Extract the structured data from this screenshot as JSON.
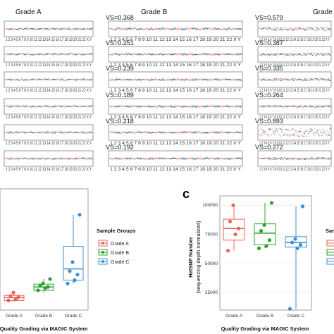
{
  "headers": {
    "grade_a": "Grade A",
    "grade_b": "Grade B",
    "grade_c": "Grade C"
  },
  "vs_b": [
    "VS=0.368",
    "VS=0.251",
    "VS=0.239",
    "VS=0.189",
    "VS=0.218",
    "VS=0.192"
  ],
  "vs_c": [
    "VS=0.579",
    "VS=0.387",
    "VS=0.335",
    "VS=0.264",
    "VS=0.893",
    "VS=0.272"
  ],
  "colors": {
    "red": "#e46a5e",
    "blue": "#1f3a8a",
    "grade_a": "#e8655c",
    "grade_b": "#2ca02c",
    "grade_c": "#3d8fd6"
  },
  "chart_data": [
    {
      "type": "box",
      "panel": "b",
      "categories": [
        "Grade A",
        "Grade B",
        "Grade C"
      ],
      "xlabel": "Quality Grading via MAGIC System",
      "ylabel": "",
      "legend_title": "Sample Groups",
      "legend": [
        "Grade A",
        "Grade B",
        "Grade C"
      ],
      "legend_position": "right",
      "ylim": [
        0,
        1
      ],
      "series": [
        {
          "group": "Grade A",
          "q1": 0.06,
          "median": 0.085,
          "q3": 0.105,
          "whisker_low": 0.05,
          "whisker_high": 0.14,
          "points": [
            0.06,
            0.07,
            0.09,
            0.1,
            0.13
          ]
        },
        {
          "group": "Grade B",
          "q1": 0.15,
          "median": 0.18,
          "q3": 0.205,
          "whisker_low": 0.13,
          "whisker_high": 0.25,
          "points": [
            0.15,
            0.17,
            0.18,
            0.19,
            0.21,
            0.25
          ]
        },
        {
          "group": "Grade C",
          "q1": 0.24,
          "median": 0.34,
          "q3": 0.54,
          "whisker_low": 0.21,
          "whisker_high": 0.82,
          "points": [
            0.21,
            0.24,
            0.29,
            0.32,
            0.4,
            0.82
          ]
        }
      ]
    },
    {
      "type": "box",
      "panel": "c",
      "panel_label": "c",
      "categories": [
        "Grade A",
        "Grade B",
        "Grade C"
      ],
      "xlabel": "Quality Grading via MAGIC System",
      "ylabel": "HetSNP Number",
      "ylabel2": "(sequencing depth normalized)",
      "ylim": [
        10000,
        108000
      ],
      "yticks": [
        25000,
        50000,
        75000,
        100000
      ],
      "ytick_labels": [
        "25000",
        "50000",
        "75000",
        "100000"
      ],
      "legend_title": "Sam",
      "series": [
        {
          "group": "Grade A",
          "q1": 70000,
          "median": 80000,
          "q3": 88000,
          "whisker_low": 61000,
          "whisker_high": 100000,
          "points": [
            61000,
            75000,
            80000,
            86000,
            100000
          ]
        },
        {
          "group": "Grade B",
          "q1": 66000,
          "median": 76000,
          "q3": 84000,
          "whisker_low": 63000,
          "whisker_high": 102000,
          "points": [
            63000,
            65000,
            70000,
            78000,
            83000,
            102000
          ]
        },
        {
          "group": "Grade C",
          "q1": 64000,
          "median": 68000,
          "q3": 73000,
          "whisker_low": 11000,
          "whisker_high": 99000,
          "points": [
            11000,
            63000,
            66000,
            68000,
            71000,
            99000
          ]
        }
      ]
    }
  ]
}
